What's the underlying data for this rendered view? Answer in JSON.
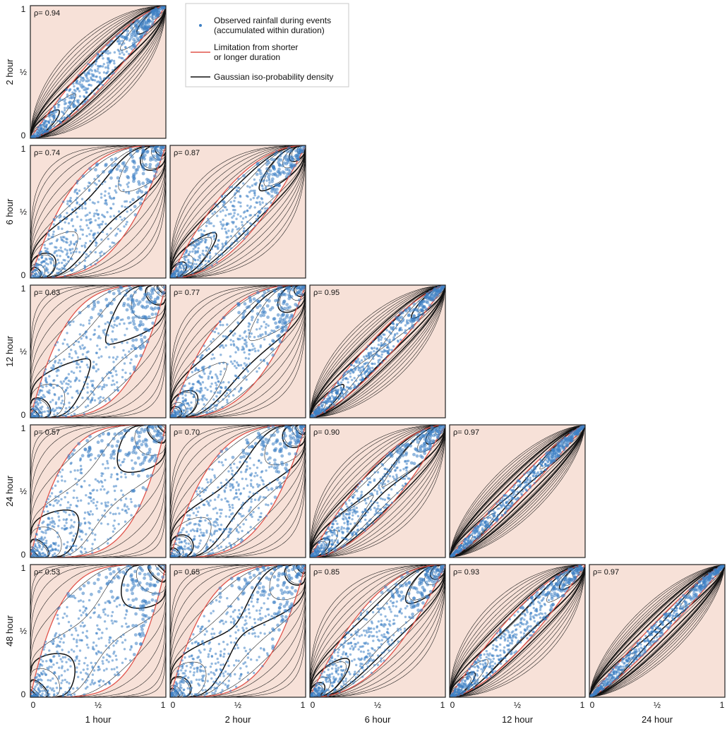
{
  "chart_data": {
    "type": "scatter",
    "title": "",
    "legend": {
      "placement": "top-center",
      "entries": [
        {
          "label": "Observed rainfall during events",
          "label_line2": "(accumulated within duration)",
          "marker": "point",
          "color": "#3d7fc4"
        },
        {
          "label": "Limitation from shorter",
          "label_line2": "or longer duration",
          "marker": "line",
          "color": "#e0534a"
        },
        {
          "label": "Gaussian iso-probability density",
          "label_line2": "",
          "marker": "line",
          "color": "#111111"
        }
      ]
    },
    "durations": [
      "1 hour",
      "2 hour",
      "6 hour",
      "12 hour",
      "24 hour",
      "48 hour"
    ],
    "x_durations": [
      "1 hour",
      "2 hour",
      "6 hour",
      "12 hour",
      "24 hour"
    ],
    "y_durations": [
      "2 hour",
      "6 hour",
      "12 hour",
      "24 hour",
      "48 hour"
    ],
    "tick_labels": [
      "0",
      "½",
      "1"
    ],
    "xlim": [
      0,
      1
    ],
    "ylim": [
      0,
      1
    ],
    "grid": false,
    "colors": {
      "points": "#3d7fc4",
      "limit_line": "#e0534a",
      "excluded_region": "#f7e1d8",
      "contours": "#111111"
    },
    "panels": [
      {
        "row": 0,
        "col": 0,
        "x_duration": "1 hour",
        "y_duration": "2 hour",
        "rho_label": "ρ= 0.94",
        "rho": 0.94
      },
      {
        "row": 1,
        "col": 0,
        "x_duration": "1 hour",
        "y_duration": "6 hour",
        "rho_label": "ρ= 0.74",
        "rho": 0.74
      },
      {
        "row": 1,
        "col": 1,
        "x_duration": "2 hour",
        "y_duration": "6 hour",
        "rho_label": "ρ= 0.87",
        "rho": 0.87
      },
      {
        "row": 2,
        "col": 0,
        "x_duration": "1 hour",
        "y_duration": "12 hour",
        "rho_label": "ρ= 0.63",
        "rho": 0.63
      },
      {
        "row": 2,
        "col": 1,
        "x_duration": "2 hour",
        "y_duration": "12 hour",
        "rho_label": "ρ= 0.77",
        "rho": 0.77
      },
      {
        "row": 2,
        "col": 2,
        "x_duration": "6 hour",
        "y_duration": "12 hour",
        "rho_label": "ρ= 0.95",
        "rho": 0.95
      },
      {
        "row": 3,
        "col": 0,
        "x_duration": "1 hour",
        "y_duration": "24 hour",
        "rho_label": "ρ= 0.57",
        "rho": 0.57
      },
      {
        "row": 3,
        "col": 1,
        "x_duration": "2 hour",
        "y_duration": "24 hour",
        "rho_label": "ρ= 0.70",
        "rho": 0.7
      },
      {
        "row": 3,
        "col": 2,
        "x_duration": "6 hour",
        "y_duration": "24 hour",
        "rho_label": "ρ= 0.90",
        "rho": 0.9
      },
      {
        "row": 3,
        "col": 3,
        "x_duration": "12 hour",
        "y_duration": "24 hour",
        "rho_label": "ρ= 0.97",
        "rho": 0.97
      },
      {
        "row": 4,
        "col": 0,
        "x_duration": "1 hour",
        "y_duration": "48 hour",
        "rho_label": "ρ= 0.53",
        "rho": 0.53
      },
      {
        "row": 4,
        "col": 1,
        "x_duration": "2 hour",
        "y_duration": "48 hour",
        "rho_label": "ρ= 0.65",
        "rho": 0.65
      },
      {
        "row": 4,
        "col": 2,
        "x_duration": "6 hour",
        "y_duration": "48 hour",
        "rho_label": "ρ= 0.85",
        "rho": 0.85
      },
      {
        "row": 4,
        "col": 3,
        "x_duration": "12 hour",
        "y_duration": "48 hour",
        "rho_label": "ρ= 0.93",
        "rho": 0.93
      },
      {
        "row": 4,
        "col": 4,
        "x_duration": "24 hour",
        "y_duration": "48 hour",
        "rho_label": "ρ= 0.97",
        "rho": 0.97
      }
    ]
  }
}
